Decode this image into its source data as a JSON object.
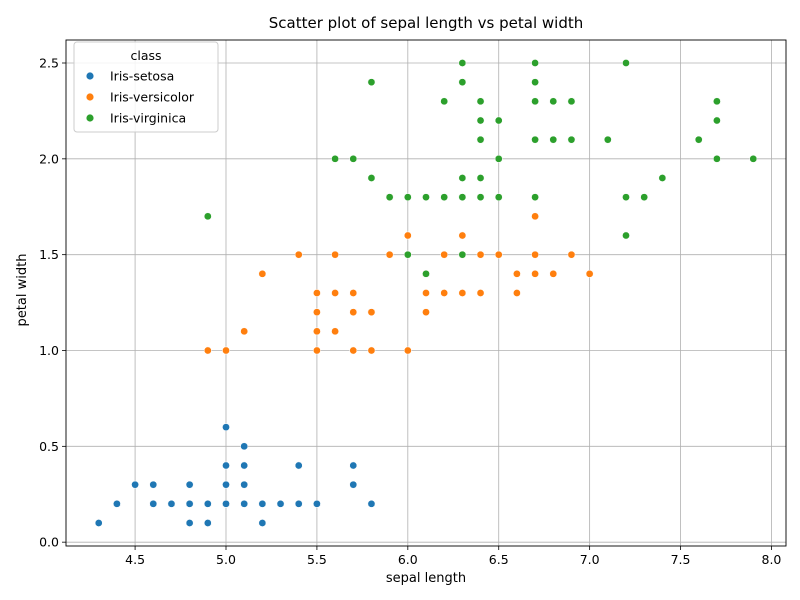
{
  "chart_data": {
    "type": "scatter",
    "title": "Scatter plot of sepal length vs petal width",
    "xlabel": "sepal length",
    "ylabel": "petal width",
    "xlim": [
      4.12,
      8.08
    ],
    "ylim": [
      -0.02,
      2.62
    ],
    "xticks": [
      "4.5",
      "5.0",
      "5.5",
      "6.0",
      "6.5",
      "7.0",
      "7.5",
      "8.0"
    ],
    "yticks": [
      "0.0",
      "0.5",
      "1.0",
      "1.5",
      "2.0",
      "2.5"
    ],
    "grid": true,
    "legend": {
      "title": "class",
      "placement": "top-left"
    },
    "series": [
      {
        "name": "Iris-setosa",
        "color": "#1f77b4",
        "x": [
          5.1,
          4.9,
          4.7,
          4.6,
          5.0,
          5.4,
          4.6,
          5.0,
          4.4,
          4.9,
          5.4,
          4.8,
          4.8,
          4.3,
          5.8,
          5.7,
          5.4,
          5.1,
          5.7,
          5.1,
          5.4,
          5.1,
          4.6,
          5.1,
          4.8,
          5.0,
          5.0,
          5.2,
          5.2,
          4.7,
          4.8,
          5.4,
          5.2,
          5.5,
          4.9,
          5.0,
          5.5,
          4.9,
          4.4,
          5.1,
          5.0,
          4.5,
          4.4,
          5.0,
          5.1,
          4.8,
          5.1,
          4.6,
          5.3,
          5.0
        ],
        "y": [
          0.2,
          0.2,
          0.2,
          0.2,
          0.2,
          0.4,
          0.3,
          0.2,
          0.2,
          0.1,
          0.2,
          0.2,
          0.1,
          0.1,
          0.2,
          0.4,
          0.4,
          0.3,
          0.3,
          0.3,
          0.2,
          0.4,
          0.2,
          0.5,
          0.2,
          0.2,
          0.4,
          0.2,
          0.2,
          0.2,
          0.2,
          0.4,
          0.1,
          0.2,
          0.1,
          0.2,
          0.2,
          0.1,
          0.2,
          0.2,
          0.3,
          0.3,
          0.2,
          0.6,
          0.4,
          0.3,
          0.2,
          0.2,
          0.2,
          0.2
        ]
      },
      {
        "name": "Iris-versicolor",
        "color": "#ff7f0e",
        "x": [
          7.0,
          6.4,
          6.9,
          5.5,
          6.5,
          5.7,
          6.3,
          4.9,
          6.6,
          5.2,
          5.0,
          5.9,
          6.0,
          6.1,
          5.6,
          6.7,
          5.6,
          5.8,
          6.2,
          5.6,
          5.9,
          6.1,
          6.3,
          6.1,
          6.4,
          6.6,
          6.8,
          6.7,
          6.0,
          5.7,
          5.5,
          5.5,
          5.8,
          6.0,
          5.4,
          6.0,
          6.7,
          6.3,
          5.6,
          5.5,
          5.5,
          6.1,
          5.8,
          5.0,
          5.6,
          5.7,
          5.7,
          6.2,
          5.1,
          5.7
        ],
        "y": [
          1.4,
          1.5,
          1.5,
          1.3,
          1.5,
          1.3,
          1.6,
          1.0,
          1.3,
          1.4,
          1.0,
          1.5,
          1.0,
          1.4,
          1.3,
          1.4,
          1.5,
          1.0,
          1.5,
          1.1,
          1.8,
          1.3,
          1.5,
          1.2,
          1.3,
          1.4,
          1.4,
          1.7,
          1.5,
          1.0,
          1.1,
          1.0,
          1.2,
          1.6,
          1.5,
          1.6,
          1.5,
          1.3,
          1.3,
          1.3,
          1.2,
          1.4,
          1.2,
          1.0,
          1.3,
          1.2,
          1.3,
          1.3,
          1.1,
          1.3
        ]
      },
      {
        "name": "Iris-virginica",
        "color": "#2ca02c",
        "x": [
          6.3,
          5.8,
          7.1,
          6.3,
          6.5,
          7.6,
          4.9,
          7.3,
          6.7,
          7.2,
          6.5,
          6.4,
          6.8,
          5.7,
          5.8,
          6.4,
          6.5,
          7.7,
          7.7,
          6.0,
          6.9,
          5.6,
          7.7,
          6.3,
          6.7,
          7.2,
          6.2,
          6.1,
          6.4,
          7.2,
          7.4,
          7.9,
          6.4,
          6.3,
          6.1,
          7.7,
          6.3,
          6.4,
          6.0,
          6.9,
          6.7,
          6.9,
          5.8,
          6.8,
          6.7,
          6.7,
          6.3,
          6.5,
          6.2,
          5.9
        ],
        "y": [
          2.5,
          1.9,
          2.1,
          1.8,
          2.2,
          2.1,
          1.7,
          1.8,
          1.8,
          2.5,
          2.0,
          1.9,
          2.1,
          2.0,
          2.4,
          2.3,
          1.8,
          2.2,
          2.3,
          1.5,
          2.3,
          2.0,
          2.0,
          1.8,
          2.1,
          1.8,
          1.8,
          1.8,
          2.1,
          1.6,
          1.9,
          2.0,
          2.2,
          1.5,
          1.4,
          2.3,
          2.4,
          1.8,
          1.8,
          2.1,
          2.4,
          2.3,
          1.9,
          2.3,
          2.5,
          2.3,
          1.9,
          2.0,
          2.3,
          1.8
        ]
      }
    ]
  }
}
